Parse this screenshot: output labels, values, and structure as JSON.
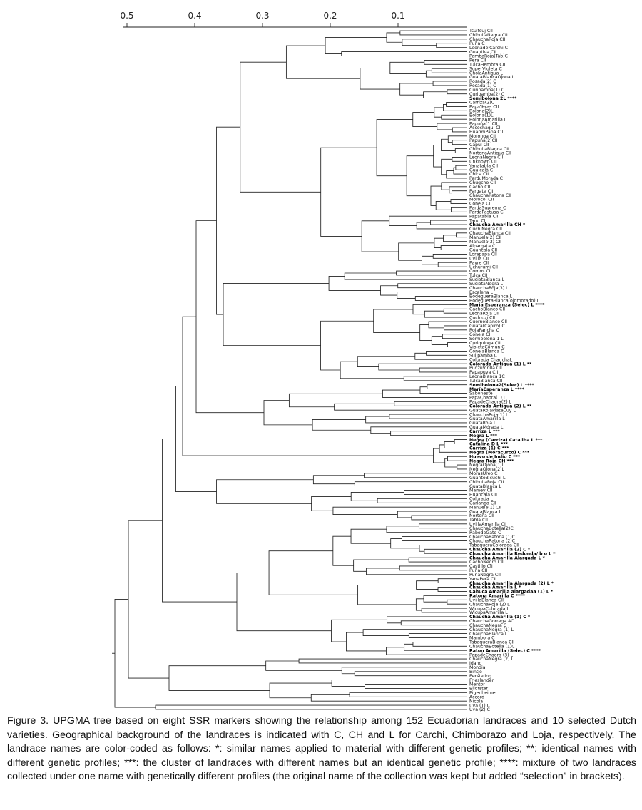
{
  "scale": {
    "ticks": [
      "0.5",
      "0.4",
      "0.3",
      "0.2",
      "0.1"
    ]
  },
  "leaves": [
    "Tsujtsuj CII",
    "ChihuilaNegra CII",
    "ChauchaRoja CII",
    "Puña C",
    "LeonadelCarchi C",
    "Guantiva CII",
    "PambaRoja(Tab)C",
    "Pera CII",
    "TulcaHembra CII",
    "SuperVioleta C",
    "CholaAntigua L",
    "GuataBlancaOjona L",
    "Rosada(2) C",
    "Rosada(1) C",
    "Curipamba(1) C",
    "Curipamba(2) C",
    "Semibolona 2L ****",
    "Carriza(2)C",
    "PapaYeras CII",
    "Bolona(2)L",
    "Bolona(1)L",
    "BolonaAmarilla L",
    "Papuña(1)CII",
    "Ascochaqui CII",
    "HuarmiPapa CII",
    "Moronga CII",
    "Papuña(2)CII",
    "Capul CII",
    "ChihuilaBlanca CII",
    "NortenaAntigua CII",
    "LeonaNegra CII",
    "Unknown CII",
    "Yanatabla CII",
    "Gualcalá C",
    "Chica CII",
    "ParduMorada C",
    "Chugcho CII",
    "Cacho CII",
    "Pargate CII",
    "ChauchaRatona CII",
    "Morocol CII",
    "Coneja CII",
    "PardaSuprema C",
    "PardaPastusa C",
    "Papatabla CII",
    "Tand CII",
    "Chaucha Amarilla CH *",
    "CuchiNegra CII",
    "ChauchaBlanca CII",
    "Manuela(2) CII",
    "Manuela(3) CII",
    "Alpargata C",
    "Guancala CII",
    "Lorapapa CII",
    "Uvilla CII",
    "Payre CII",
    "Uchurumi CII",
    "Cornos CII",
    "Tulca CII",
    "SusiotaBlanca L",
    "SusiotaNegra L",
    "ChauchaRoja(3) L",
    "Escalena L",
    "BodegueraBlanca L",
    "BodegueraBlanca(ojomorado) L",
    "Maria Esperanza (Selec) L ****",
    "CachoBlanco CII",
    "LeonaRoja CII",
    "Cuchidzi CII",
    "CuernoBlanco CII",
    "Guata(Capiro) C",
    "RojaPancha C",
    "Coneja CII",
    "Semibolona 1 L",
    "Curiquinga CII",
    "VioletaComún C",
    "ConejaBlanca C",
    "Sulipamba C",
    "Colorada ChauchaL",
    "Colorada Antigua (1) L **",
    "PudzuVirilla CII",
    "Papapuya CII",
    "LeonaBlanca 1C",
    "TulcaBlanca CII",
    "Semibolona2(Selec) L ****",
    "MaríaEsperanza L ****",
    "Saboneste",
    "PapaChaora(1) L",
    "PapadeChaora(2) L",
    "Colorada Antigua (2) L **",
    "GuataRojaPlateCuy L",
    "ChauchaRoja(1) L",
    "GuataAmarilla L",
    "GuataRoja L",
    "GuataMorada L",
    "Carriza L ***",
    "Negra L ***",
    "Negra (Carriza) Cataliba L ***",
    "Catalina D L ***",
    "Carriza (1) C ***",
    "Negra (Moracurco) C ***",
    "Huevo de Indio C ***",
    "Negra Roja CH ***",
    "NegraOjona(1)L",
    "NegraOjona(2)L",
    "MorasUreo C",
    "GuantoBicuchi L",
    "ChihuilaRoja CII",
    "GuataBlanca L",
    "Mamey CII",
    "Huancala CII",
    "Colorada L",
    "Carlanga CII",
    "Manuela(1) CII",
    "GuataBlanca L",
    "Norteña CII",
    "Tabla CII",
    "UvillaAmarilla CII",
    "ChauchaBotella(2)C",
    "RabodeGato C",
    "ChauchaRatona (1)C",
    "ChauchaRatona (2)C",
    "TabaqueraColorada CII",
    "Chaucha Amarilla (2) C *",
    "Chaucha Amarilla Redonda/ b o L *",
    "Chaucha Amarilla Alargada L *",
    "CachoNegro CII",
    "Castillo CII",
    "Puña CII",
    "PuñaNegra CII",
    "YanaPera CII",
    "Chaucha Amarilla Alargada (2) L *",
    "Chaucha Amarilla L *",
    "Cahuca Amarilla alargadaa (1) L *",
    "Ratona Amarilla C ****",
    "UvillaBlanca CII",
    "ChauchaRoja (2) L",
    "WicupaColorada L",
    "WicupaAmarilla L",
    "Chaucha Amarilla (1) C *",
    "ChauchaGorrega AC",
    "ChauchaNegra C",
    "ChauchaNegra (1) L",
    "ChauchaBlanca L",
    "Mambora C",
    "TabaqueraBlanca CII",
    "ChauchaBotella (1)C",
    "Raton Amarilla (Selec) C ****",
    "PapadeChaora (3) L",
    "ChauchaNegra (2) L",
    "Idaho",
    "Mondial",
    "Bintje",
    "Eersteling",
    "Frieslander",
    "Mentor",
    "Bildtstar",
    "Eigenheimer",
    "Accord",
    "Nicola",
    "Uva (1) C",
    "Uva (2) C"
  ],
  "highlighted": [
    "Semibolona 2L ****",
    "Chaucha Amarilla CH *",
    "Maria Esperanza (Selec) L ****",
    "Colorada Antigua (1) L **",
    "Semibolona2(Selec) L ****",
    "MaríaEsperanza L ****",
    "Colorada Antigua (2) L **",
    "Carriza L ***",
    "Negra L ***",
    "Negra (Carriza) Cataliba L ***",
    "Catalina D L ***",
    "Carriza (1) C ***",
    "Negra (Moracurco) C ***",
    "Huevo de Indio C ***",
    "Negra Roja CH ***",
    "Chaucha Amarilla (2) C *",
    "Chaucha Amarilla Redonda/ b o L *",
    "Chaucha Amarilla Alargada L *",
    "Chaucha Amarilla Alargada (2) L *",
    "Chaucha Amarilla L *",
    "Cahuca Amarilla alargadaa (1) L *",
    "Ratona Amarilla C ****",
    "Chaucha Amarilla (1) C *",
    "Raton Amarilla (Selec) C ****"
  ],
  "caption": "Figure 3. UPGMA tree based on eight SSR markers showing the relationship among 152 Ecuadorian landraces and 10 selected Dutch varieties. Geographical background of the landraces is indicated with C, CH and L for Carchi, Chimborazo and Loja, respectively. The landrace names are color-coded as follows: *: similar names applied to material with different genetic profiles; **: identical names with different genetic profiles; ***: the cluster of landraces with different names but an identical genetic profile; ****: mixture of two landraces collected under one name with genetically different profiles (the original name of the collection was kept but added “selection” in brackets)."
}
